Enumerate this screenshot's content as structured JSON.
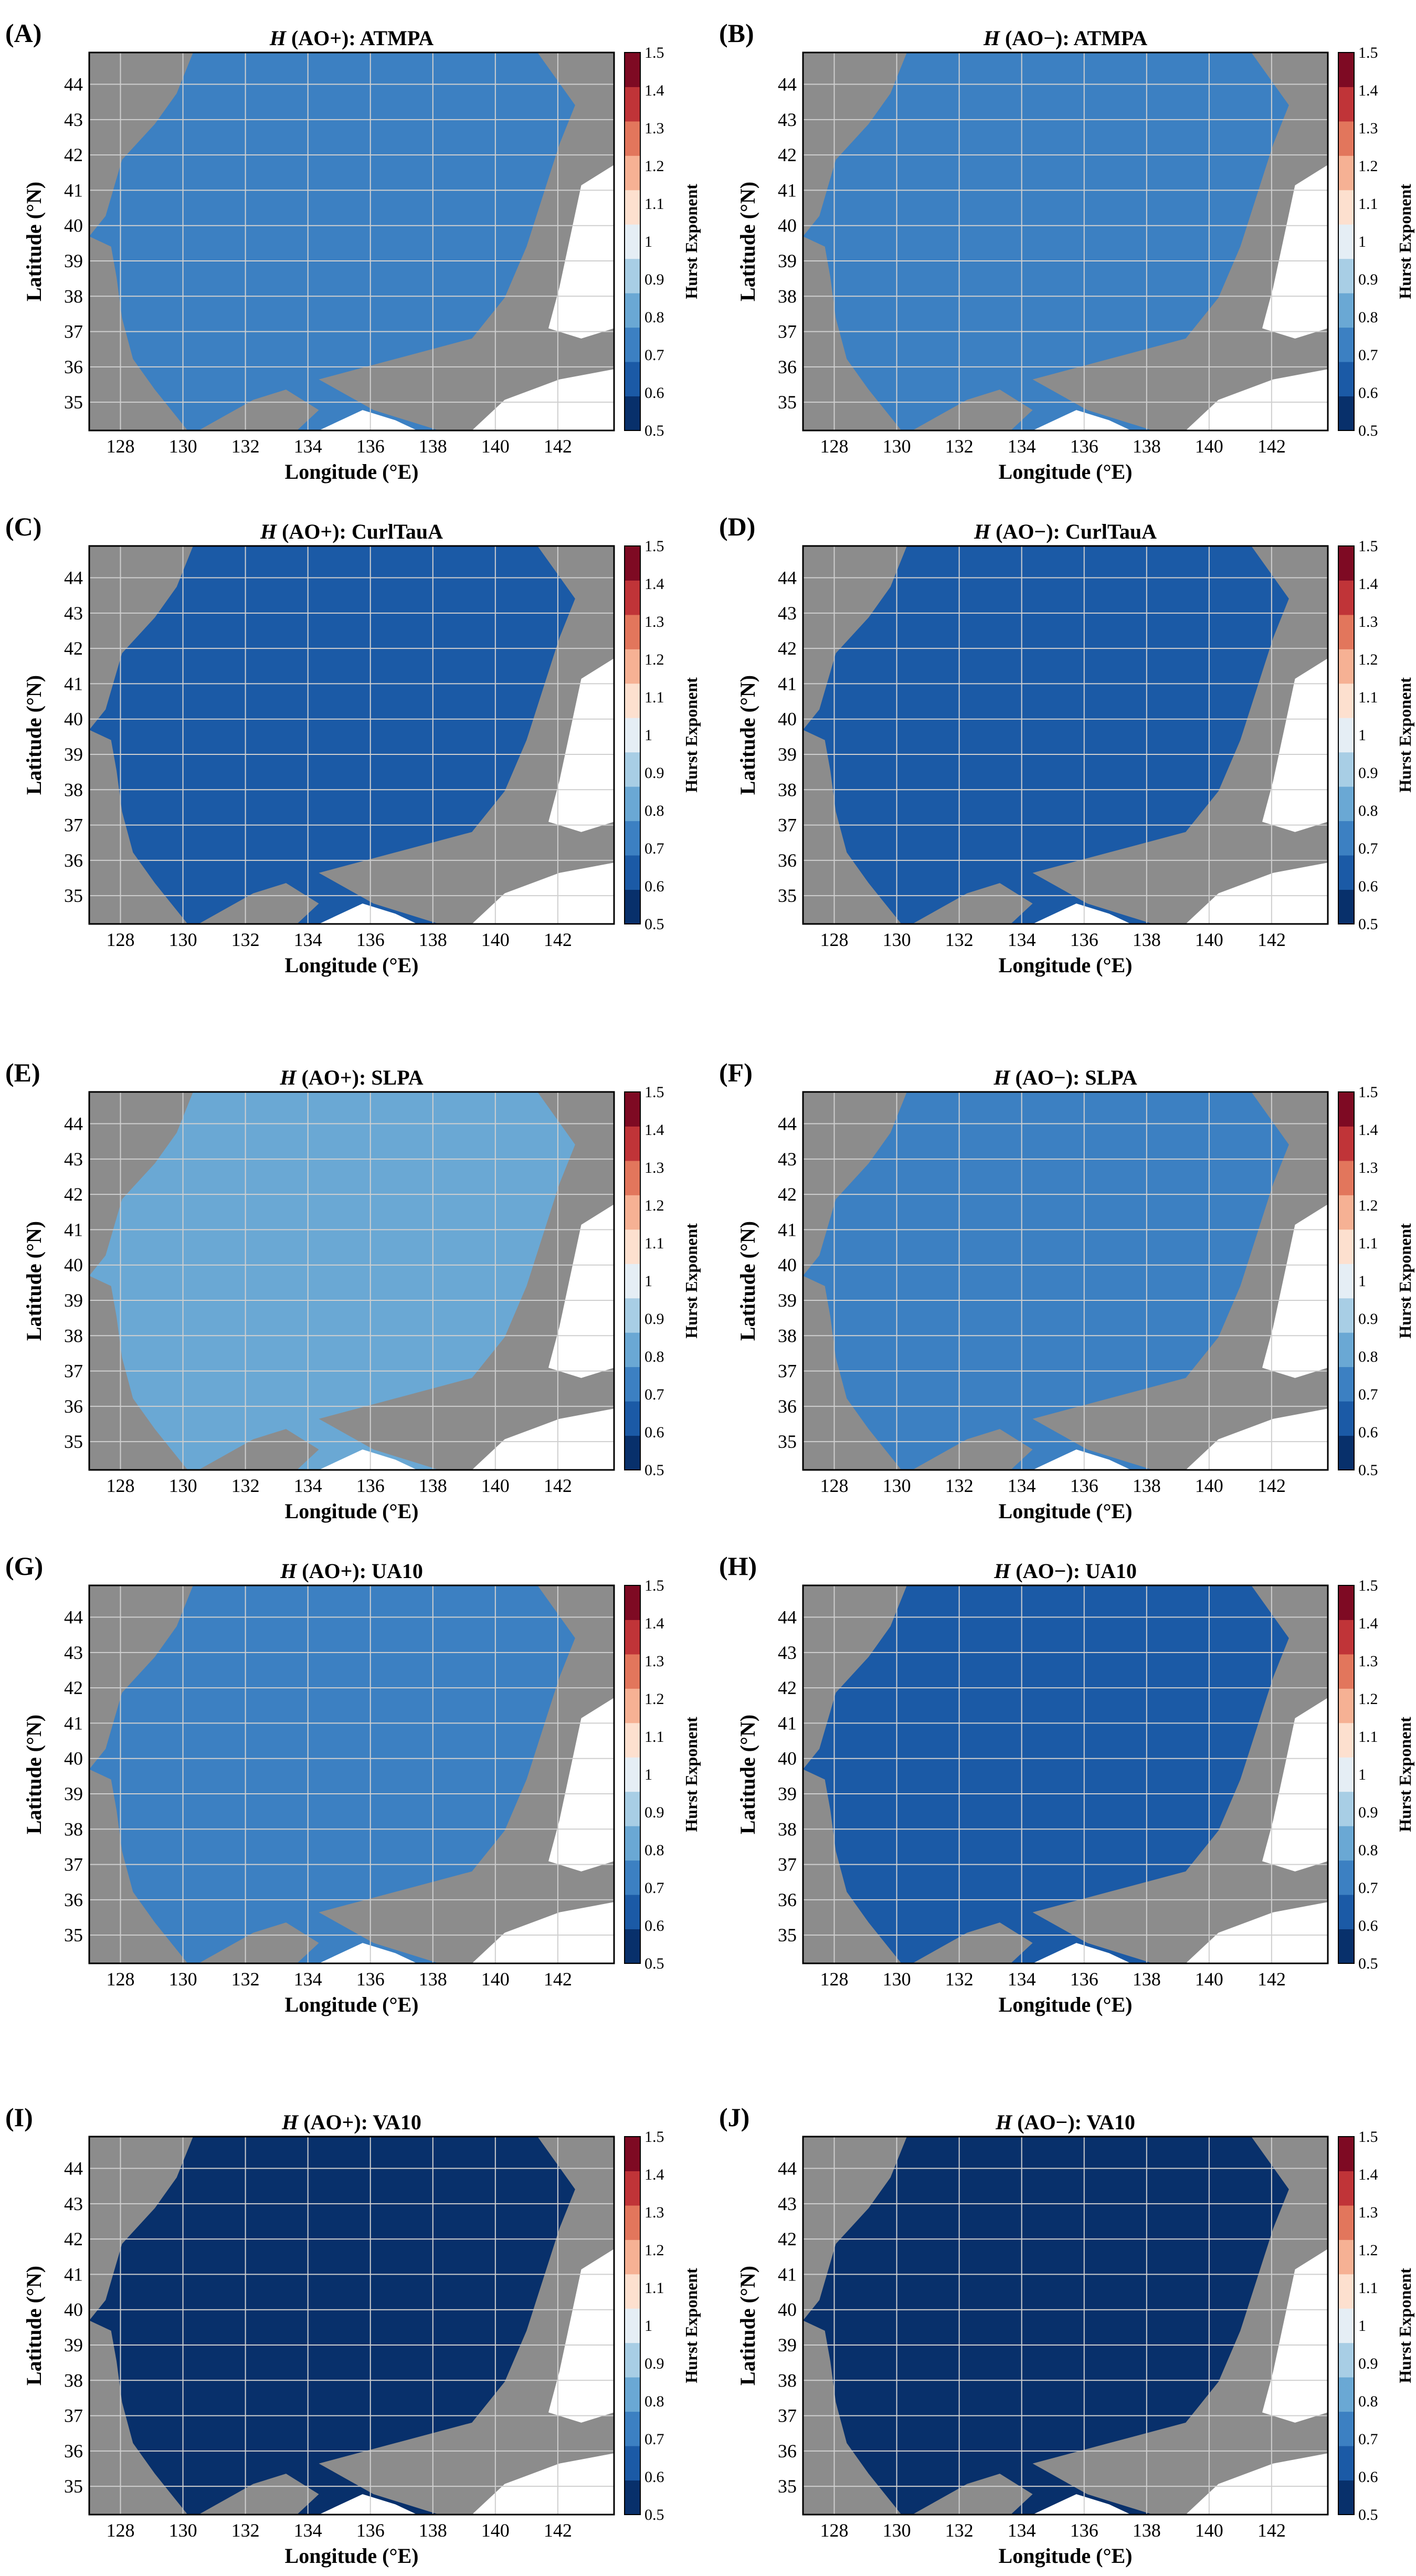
{
  "figure": {
    "x_axis_label": "Longitude (°E)",
    "y_axis_label": "Latitude (°N)",
    "colorbar_label": "Hurst Exponent",
    "x_ticks": [
      "128",
      "130",
      "132",
      "134",
      "136",
      "138",
      "140",
      "142"
    ],
    "y_ticks": [
      "35",
      "36",
      "37",
      "38",
      "39",
      "40",
      "41",
      "42",
      "43",
      "44"
    ],
    "colorbar_ticks": [
      "1.5",
      "1.4",
      "1.3",
      "1.2",
      "1.1",
      "1",
      "0.9",
      "0.8",
      "0.7",
      "0.6",
      "0.5"
    ],
    "colorbar_range": [
      0.5,
      1.5
    ],
    "lon_range": [
      127,
      143.8
    ],
    "lat_range": [
      34.2,
      44.9
    ],
    "colors": {
      "land": "#8c8c8c",
      "grid": "#cfcfcf",
      "colormap": [
        "#08306b",
        "#1b5aa6",
        "#3c80c2",
        "#6aa8d4",
        "#a8cee5",
        "#e5eef5",
        "#fde0cf",
        "#f6b194",
        "#e2765c",
        "#c03438",
        "#7e0a23"
      ]
    }
  },
  "panels": [
    {
      "label": "(A)",
      "title_prefix": "H",
      "title_rest": " (AO+): ATMPA",
      "dominant_hurst": 0.74
    },
    {
      "label": "(B)",
      "title_prefix": "H",
      "title_rest": " (AO−): ATMPA",
      "dominant_hurst": 0.78
    },
    {
      "label": "(C)",
      "title_prefix": "H",
      "title_rest": " (AO+): CurlTauA",
      "dominant_hurst": 0.62
    },
    {
      "label": "(D)",
      "title_prefix": "H",
      "title_rest": " (AO−): CurlTauA",
      "dominant_hurst": 0.65
    },
    {
      "label": "(E)",
      "title_prefix": "H",
      "title_rest": " (AO+): SLPA",
      "dominant_hurst": 0.8
    },
    {
      "label": "(F)",
      "title_prefix": "H",
      "title_rest": " (AO−): SLPA",
      "dominant_hurst": 0.76
    },
    {
      "label": "(G)",
      "title_prefix": "H",
      "title_rest": " (AO+): UA10",
      "dominant_hurst": 0.72
    },
    {
      "label": "(H)",
      "title_prefix": "H",
      "title_rest": " (AO−): UA10",
      "dominant_hurst": 0.7
    },
    {
      "label": "(I)",
      "title_prefix": "H",
      "title_rest": " (AO+): VA10",
      "dominant_hurst": 0.55
    },
    {
      "label": "(J)",
      "title_prefix": "H",
      "title_rest": " (AO−): VA10",
      "dominant_hurst": 0.55
    }
  ]
}
